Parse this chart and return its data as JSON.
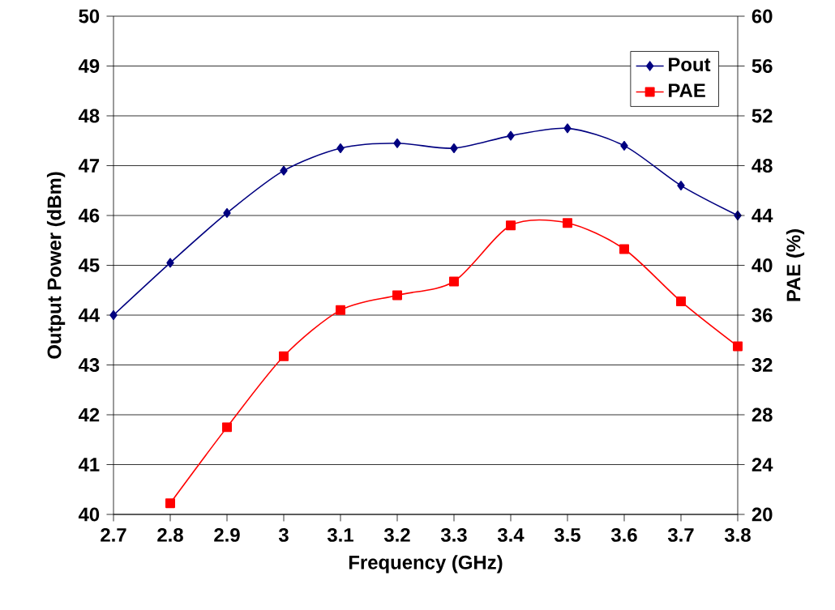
{
  "chart_data": {
    "type": "line",
    "xlabel": "Frequency (GHz)",
    "ylabel": "Output Power (dBm)",
    "y2label": "PAE (%)",
    "x": [
      2.7,
      2.8,
      2.9,
      3,
      3.1,
      3.2,
      3.3,
      3.4,
      3.5,
      3.6,
      3.7,
      3.8
    ],
    "series": [
      {
        "name": "Pout",
        "color": "#000080",
        "marker": "diamond",
        "values": [
          44.0,
          45.05,
          46.05,
          46.9,
          47.35,
          47.45,
          47.35,
          47.6,
          47.75,
          47.4,
          46.6,
          46.0
        ]
      },
      {
        "name": "PAE",
        "color": "#ff0000",
        "marker": "square",
        "axis": "y2",
        "values": [
          null,
          20.9,
          27.0,
          32.7,
          36.4,
          37.6,
          38.7,
          43.2,
          43.4,
          41.3,
          37.1,
          33.5
        ]
      }
    ],
    "xlim": [
      2.7,
      3.8
    ],
    "xticks": [
      2.7,
      2.8,
      2.9,
      3,
      3.1,
      3.2,
      3.3,
      3.4,
      3.5,
      3.6,
      3.7,
      3.8
    ],
    "ylim": [
      40,
      50
    ],
    "yticks": [
      40,
      41,
      42,
      43,
      44,
      45,
      46,
      47,
      48,
      49,
      50
    ],
    "y2lim": [
      20,
      60
    ],
    "y2ticks": [
      20,
      24,
      28,
      32,
      36,
      40,
      44,
      48,
      52,
      56,
      60
    ],
    "grid": "y",
    "legend": "top right",
    "line_style": "solid"
  }
}
